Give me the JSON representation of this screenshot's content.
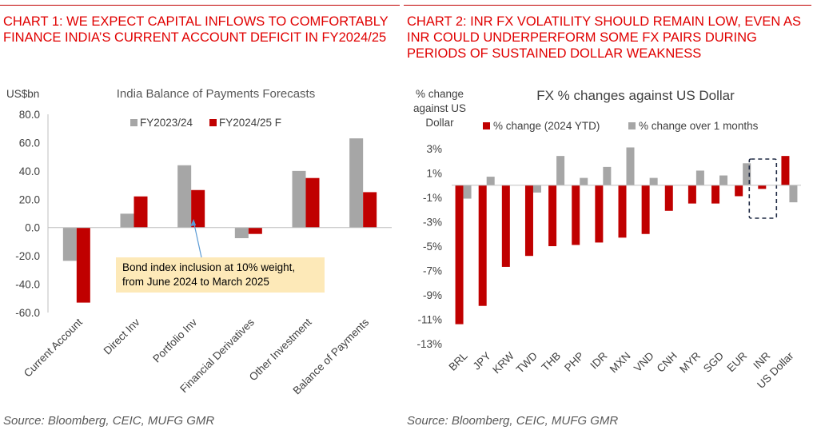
{
  "left": {
    "heading": "CHART 1: WE EXPECT CAPITAL INFLOWS TO COMFORTABLY FINANCE INDIA’S CURRENT ACCOUNT DEFICIT IN FY2024/25",
    "source": "Source: Bloomberg, CEIC, MUFG GMR"
  },
  "right": {
    "heading": "CHART 2: INR FX VOLATILITY SHOULD REMAIN LOW, EVEN AS INR COULD UNDERPERFORM SOME FX PAIRS DURING PERIODS OF SUSTAINED DOLLAR WEAKNESS",
    "source": "Source: Bloomberg, CEIC, MUFG GMR"
  },
  "chart_data": [
    {
      "type": "bar",
      "title": "India Balance of Payments Forecasts",
      "ylabel": "US$bn",
      "categories": [
        "Current Account",
        "Direct Inv",
        "Portfolio Inv",
        "Financial Derivatives",
        "Other Investment",
        "Balance of Payments"
      ],
      "series": [
        {
          "name": "FY2023/24",
          "color": "#a6a6a6",
          "values": [
            -23.5,
            9.8,
            44.0,
            -7.5,
            40.0,
            63.0
          ]
        },
        {
          "name": "FY2024/25 F",
          "color": "#c00000",
          "values": [
            -53.0,
            22.0,
            26.5,
            -4.5,
            35.0,
            25.0
          ]
        }
      ],
      "ylim": [
        -60,
        80
      ],
      "yticks": [
        "80.0",
        "60.0",
        "40.0",
        "20.0",
        "0.0",
        "-20.0",
        "-40.0",
        "-60.0"
      ],
      "legend": "top-right",
      "annotation": {
        "lines": [
          "Bond index inclusion at 10% weight,",
          "from June 2024 to March 2025"
        ],
        "target": "Portfolio Inv",
        "background": "#fde9b8"
      },
      "grid": false
    },
    {
      "type": "bar",
      "title": "FX % changes against US Dollar",
      "ylabel_lines": [
        "% change",
        "against US",
        "Dollar"
      ],
      "categories": [
        "BRL",
        "JPY",
        "KRW",
        "TWD",
        "THB",
        "PHP",
        "IDR",
        "MXN",
        "VND",
        "CNH",
        "MYR",
        "SGD",
        "EUR",
        "INR",
        "US Dollar"
      ],
      "series": [
        {
          "name": "% change (2024 YTD)",
          "color": "#c00000",
          "values": [
            -11.4,
            -9.9,
            -6.7,
            -5.8,
            -5.0,
            -4.9,
            -4.7,
            -4.3,
            -4.0,
            -2.1,
            -1.5,
            -1.5,
            -0.9,
            -0.3,
            2.4
          ]
        },
        {
          "name": "% change over 1 months",
          "color": "#a6a6a6",
          "values": [
            -1.1,
            0.7,
            0.0,
            -0.6,
            2.4,
            0.6,
            1.5,
            3.1,
            0.6,
            0.0,
            1.2,
            0.8,
            1.8,
            0.0,
            -1.4
          ]
        }
      ],
      "ylim": [
        -13,
        3
      ],
      "yticks": [
        "3%",
        "1%",
        "-1%",
        "-3%",
        "-5%",
        "-7%",
        "-9%",
        "-11%",
        "-13%"
      ],
      "legend": "top",
      "highlight": "INR",
      "grid": false
    }
  ]
}
